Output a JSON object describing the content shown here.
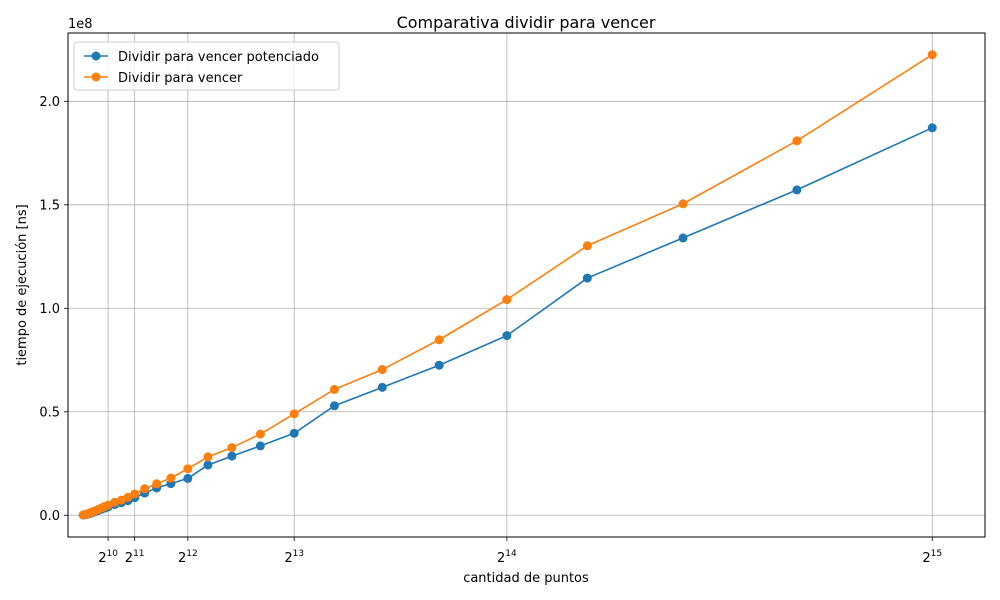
{
  "chart_data": {
    "type": "line",
    "title": "Comparativa dividir para vencer",
    "xlabel": "cantidad de puntos",
    "ylabel": "tiempo de ejecución [ns]",
    "offset_label": "1e8",
    "xlim": [
      -520,
      34800
    ],
    "ylim": [
      -10500000,
      233000000
    ],
    "x_ticks": [
      {
        "value": 1024,
        "base": "2",
        "exp": "10"
      },
      {
        "value": 2048,
        "base": "2",
        "exp": "11"
      },
      {
        "value": 4096,
        "base": "2",
        "exp": "12"
      },
      {
        "value": 8192,
        "base": "2",
        "exp": "13"
      },
      {
        "value": 16384,
        "base": "2",
        "exp": "14"
      },
      {
        "value": 32768,
        "base": "2",
        "exp": "15"
      }
    ],
    "y_ticks": [
      {
        "value": 0,
        "label": "0.0"
      },
      {
        "value": 50000000,
        "label": "0.5"
      },
      {
        "value": 100000000,
        "label": "1.0"
      },
      {
        "value": 150000000,
        "label": "1.5"
      },
      {
        "value": 200000000,
        "label": "2.0"
      }
    ],
    "grid": true,
    "legend_position": "top-left",
    "series": [
      {
        "name": "Dividir para vencer potenciado",
        "color": "#1f77b4",
        "x": [
          64,
          128,
          192,
          256,
          320,
          384,
          448,
          512,
          640,
          768,
          896,
          1024,
          1280,
          1536,
          1792,
          2048,
          2432,
          2896,
          3444,
          4096,
          4870,
          5793,
          6889,
          8192,
          9742,
          11585,
          13777,
          16384,
          19484,
          23170,
          27554,
          32768
        ],
        "y": [
          120000,
          250000,
          420000,
          620000,
          850000,
          1100000,
          1400000,
          1700000,
          2300000,
          2900000,
          3500000,
          4000000,
          5200000,
          6100000,
          7100000,
          8500000,
          10700000,
          13200000,
          15300000,
          17800000,
          24300000,
          28600000,
          33500000,
          39600000,
          52900000,
          61800000,
          72500000,
          86800000,
          114600000,
          134000000,
          157200000,
          187200000
        ]
      },
      {
        "name": "Dividir para vencer",
        "color": "#ff7f0e",
        "x": [
          64,
          128,
          192,
          256,
          320,
          384,
          448,
          512,
          640,
          768,
          896,
          1024,
          1280,
          1536,
          1792,
          2048,
          2432,
          2896,
          3444,
          4096,
          4870,
          5793,
          6889,
          8192,
          9742,
          11585,
          13777,
          16384,
          19484,
          23170,
          27554,
          32768
        ],
        "y": [
          150000,
          320000,
          530000,
          780000,
          1070000,
          1400000,
          1750000,
          2100000,
          2800000,
          3500000,
          4300000,
          4900000,
          6300000,
          7300000,
          8700000,
          10300000,
          12800000,
          15200000,
          18000000,
          22500000,
          28200000,
          32700000,
          39200000,
          49000000,
          60800000,
          70400000,
          84800000,
          104200000,
          130200000,
          150500000,
          180900000,
          222500000
        ]
      }
    ]
  }
}
